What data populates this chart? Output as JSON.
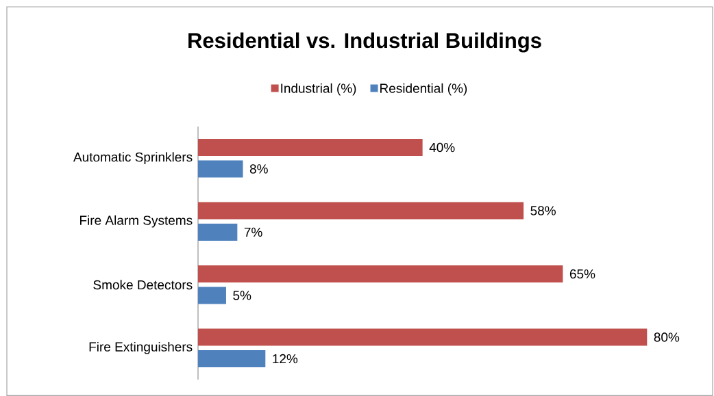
{
  "chart_data": {
    "type": "bar",
    "orientation": "horizontal",
    "title": "Residential vs. Industrial Buildings",
    "categories": [
      "Automatic Sprinklers",
      "Fire Alarm Systems",
      "Smoke Detectors",
      "Fire Extinguishers"
    ],
    "series": [
      {
        "name": "Industrial (%)",
        "color": "#c0504d",
        "values": [
          40,
          58,
          65,
          80
        ],
        "value_labels": [
          "40%",
          "58%",
          "65%",
          "80%"
        ]
      },
      {
        "name": "Residential (%)",
        "color": "#4f81bd",
        "values": [
          8,
          7,
          5,
          12
        ],
        "value_labels": [
          "8%",
          "7%",
          "5%",
          "12%"
        ]
      }
    ],
    "legend": "top"
  }
}
